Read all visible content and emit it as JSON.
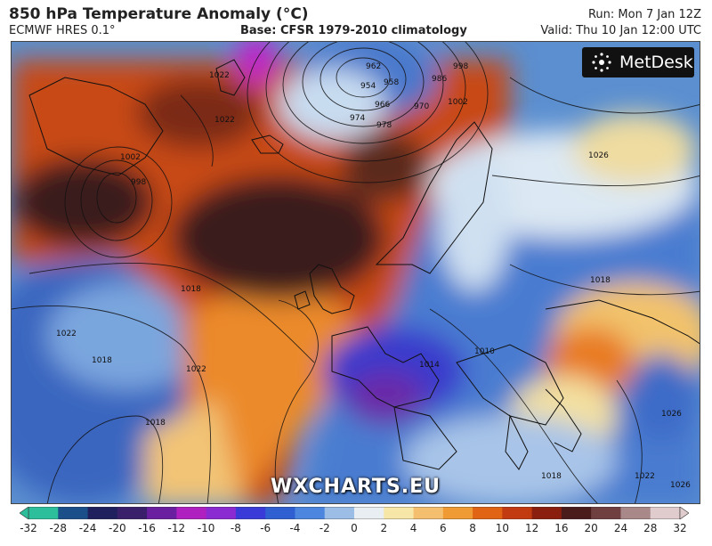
{
  "header": {
    "title": "850 hPa Temperature Anomaly (°C)",
    "model": "ECMWF HRES 0.1°",
    "base": "Base: CFSR 1979-2010 climatology",
    "run": "Run: Mon 7 Jan 12Z",
    "valid": "Valid: Thu 10 Jan 12:00 UTC"
  },
  "branding": {
    "logo_text": "MetDesk",
    "watermark": "WXCHARTS.EU"
  },
  "map": {
    "isobar_labels": [
      "962",
      "954",
      "958",
      "966",
      "974",
      "978",
      "970",
      "986",
      "998",
      "1002",
      "1022",
      "1022",
      "1026",
      "1018",
      "1018",
      "1022",
      "1002",
      "998",
      "1014",
      "1018",
      "1026",
      "1022",
      "1018",
      "1022",
      "1018",
      "1026",
      "1010"
    ],
    "colors": {
      "deep_warm": "#3a1f1f",
      "warm_red": "#c23510",
      "warm_orange": "#ea7a18",
      "warm_yellow": "#f3d48a",
      "cold_blue": "#3c6cc0",
      "cold_purple": "#5a2aa0",
      "cold_magenta": "#b020c0",
      "light": "#dfe9f2"
    }
  },
  "colorbar": {
    "tick_labels": [
      "-32",
      "-28",
      "-24",
      "-20",
      "-16",
      "-12",
      "-10",
      "-8",
      "-6",
      "-4",
      "-2",
      "0",
      "2",
      "4",
      "6",
      "8",
      "10",
      "12",
      "16",
      "20",
      "24",
      "28",
      "32"
    ],
    "colors": [
      "#2dbf9b",
      "#1a4f8a",
      "#20205e",
      "#3a1f6a",
      "#6a1fa0",
      "#b020c0",
      "#8a2ad0",
      "#3a3ad8",
      "#2f5fd0",
      "#4c86de",
      "#9cbde6",
      "#e8eef2",
      "#f6e6a8",
      "#f4c070",
      "#ef9a32",
      "#e06414",
      "#c23a10",
      "#8a1f10",
      "#4a1c1c",
      "#704040",
      "#a88888",
      "#e0cccc"
    ]
  }
}
